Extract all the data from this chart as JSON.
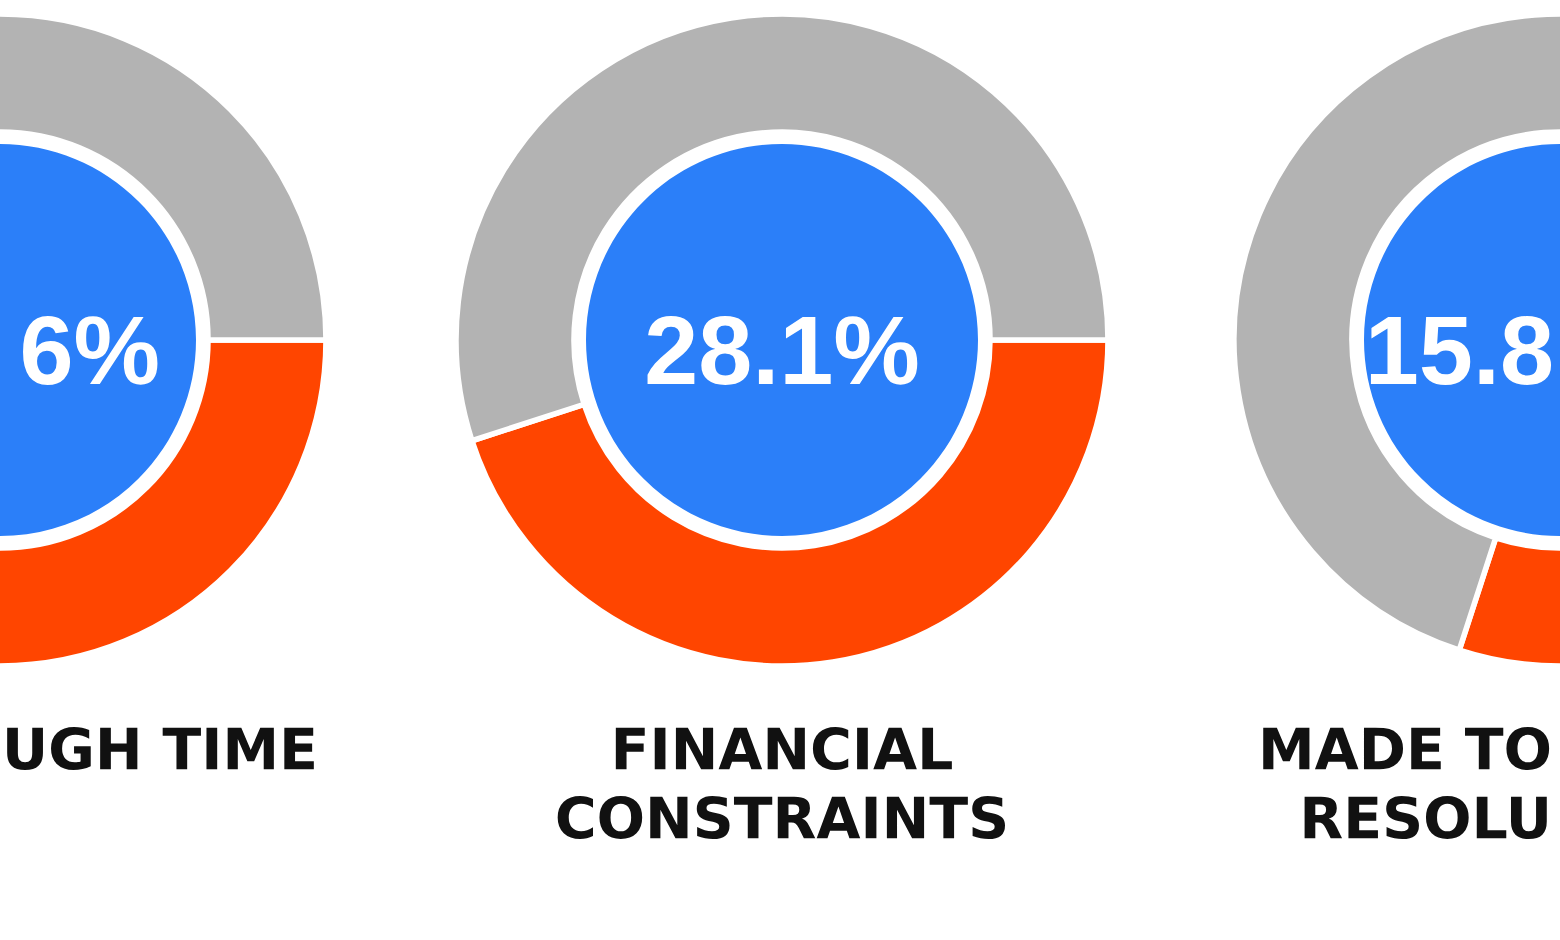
{
  "chart_data": [
    {
      "type": "donut",
      "title": "UGH TIME",
      "categories": [
        null,
        null
      ],
      "values": [
        50,
        50
      ],
      "colors": [
        "#ff4500",
        "#b3b3b3"
      ],
      "annotations": [
        "6%"
      ]
    },
    {
      "type": "donut",
      "title": "FINANCIAL\nCONSTRAINTS",
      "categories": [
        null,
        null
      ],
      "values": [
        45,
        55
      ],
      "colors": [
        "#ff4500",
        "#b3b3b3"
      ],
      "annotations": [
        "28.1%"
      ]
    },
    {
      "type": "donut",
      "title": "MADE TO\nRESOLU",
      "categories": [
        null,
        null
      ],
      "values": [
        30,
        70
      ],
      "colors": [
        "#ff4500",
        "#b3b3b3"
      ],
      "annotations": [
        "15.8"
      ]
    }
  ]
}
